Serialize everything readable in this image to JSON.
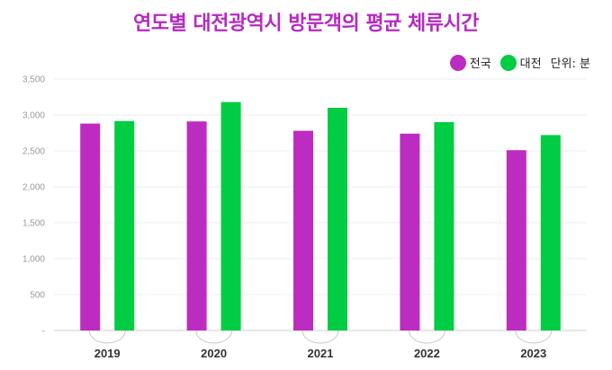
{
  "chart_data": {
    "type": "bar",
    "title": "연도별 대전광역시 방문객의 평균 체류시간",
    "unit_note": "단위: 분",
    "categories": [
      "2019",
      "2020",
      "2021",
      "2022",
      "2023"
    ],
    "series": [
      {
        "name": "전국",
        "color": "#bd2cc0",
        "values": [
          2880,
          2910,
          2780,
          2740,
          2510
        ]
      },
      {
        "name": "대전",
        "color": "#00cc44",
        "values": [
          2915,
          3180,
          3100,
          2900,
          2720
        ]
      }
    ],
    "ylim": [
      0,
      3500
    ],
    "yticks": [
      "-",
      "500",
      "1,000",
      "1,500",
      "2,000",
      "2,500",
      "3,000",
      "3,500"
    ],
    "ytick_values": [
      0,
      500,
      1000,
      1500,
      2000,
      2500,
      3000,
      3500
    ],
    "grid": true,
    "legend_position": "top-right"
  }
}
